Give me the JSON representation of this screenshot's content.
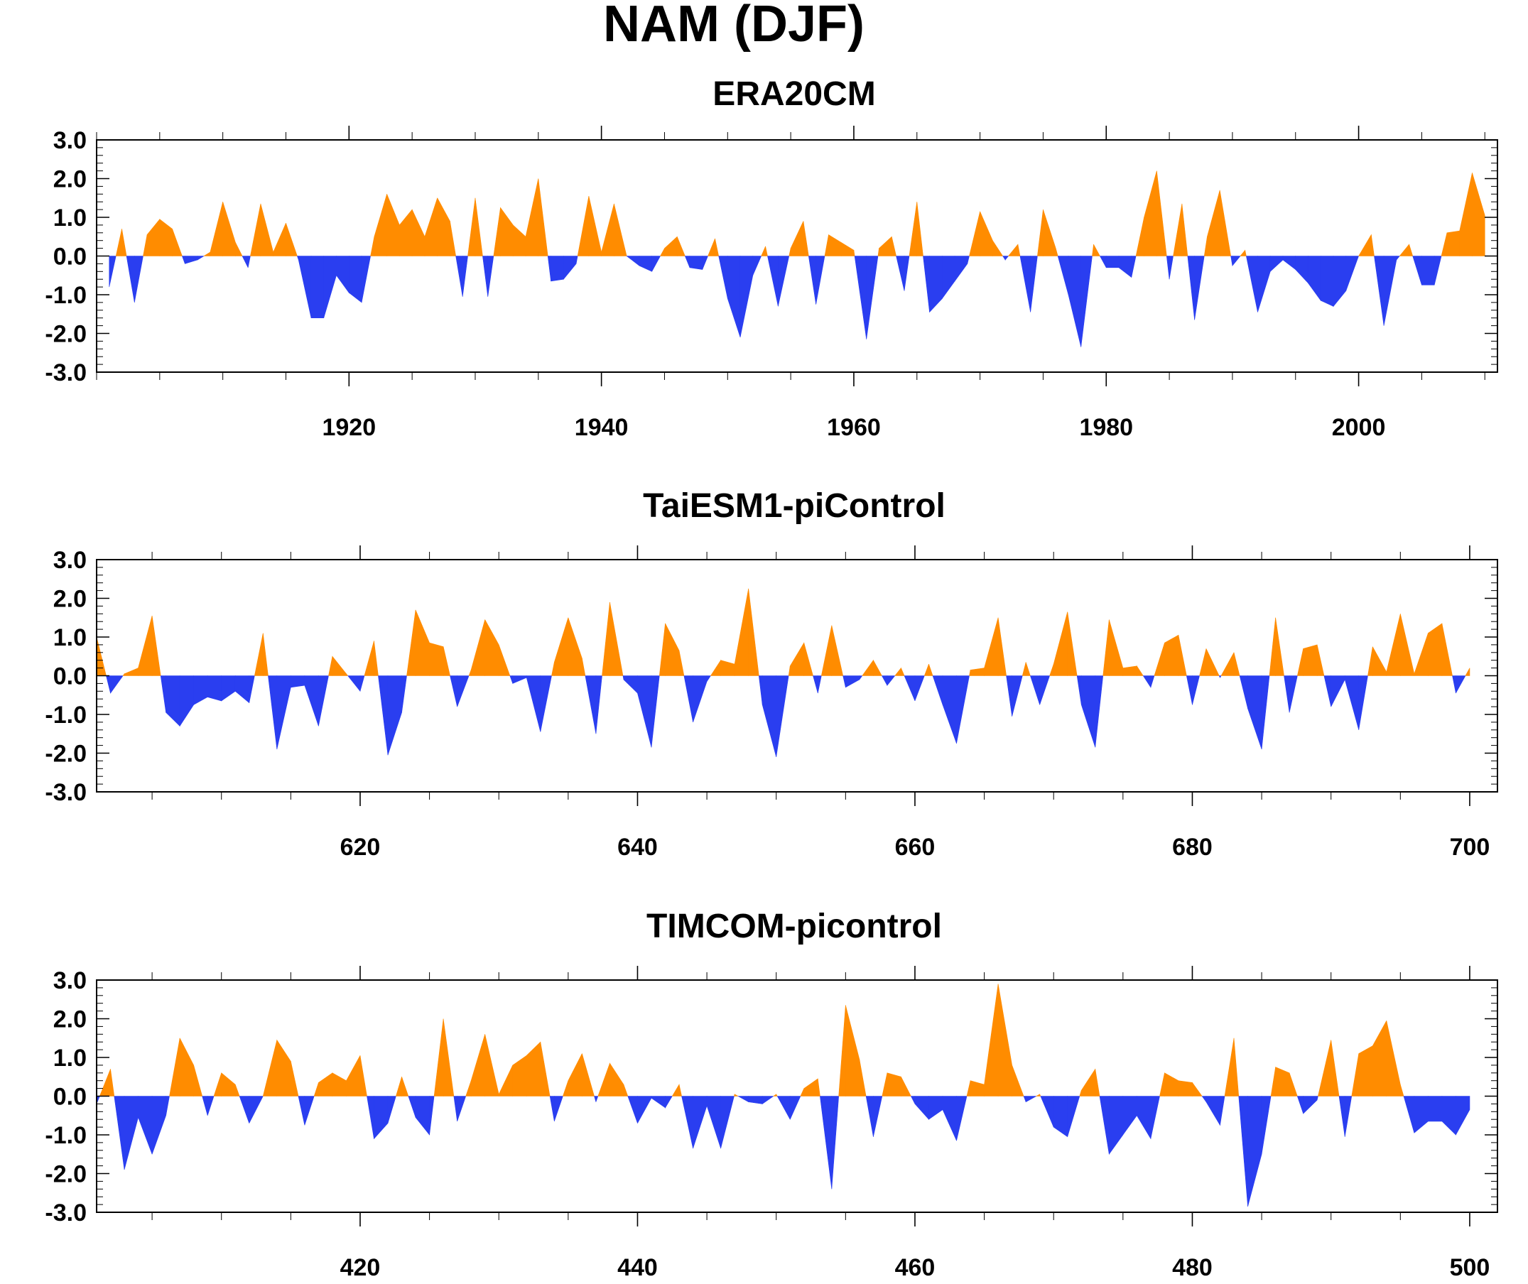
{
  "title": "NAM (DJF)",
  "colors": {
    "positive": "#ff8c00",
    "negative": "#2a3ef0",
    "axis": "#000000"
  },
  "chart_data": [
    {
      "type": "area",
      "title": "ERA20CM",
      "ylim": [
        -3,
        3
      ],
      "yticks": [
        "3.0",
        "2.0",
        "1.0",
        "0.0",
        "-1.0",
        "-2.0",
        "-3.0"
      ],
      "xlim": [
        1900,
        2011
      ],
      "xticks": [
        1920,
        1940,
        1960,
        1980,
        2000
      ],
      "x_start": 1901,
      "values": [
        -0.8,
        0.7,
        -1.2,
        0.55,
        0.95,
        0.7,
        -0.2,
        -0.1,
        0.1,
        1.4,
        0.35,
        -0.3,
        1.35,
        0.1,
        0.85,
        -0.1,
        -1.6,
        -1.6,
        -0.5,
        -0.95,
        -1.2,
        0.5,
        1.6,
        0.8,
        1.2,
        0.5,
        1.5,
        0.9,
        -1.05,
        1.5,
        -1.05,
        1.25,
        0.8,
        0.5,
        2.0,
        -0.65,
        -0.6,
        -0.2,
        1.55,
        0.1,
        1.35,
        0.0,
        -0.25,
        -0.4,
        0.2,
        0.5,
        -0.3,
        -0.35,
        0.45,
        -1.1,
        -2.1,
        -0.5,
        0.25,
        -1.3,
        0.2,
        0.9,
        -1.25,
        0.55,
        0.35,
        0.15,
        -2.15,
        0.2,
        0.5,
        -0.9,
        1.4,
        -1.45,
        -1.1,
        -0.65,
        -0.2,
        1.15,
        0.4,
        -0.1,
        0.3,
        -1.45,
        1.2,
        0.2,
        -1.0,
        -2.35,
        0.3,
        -0.3,
        -0.3,
        -0.55,
        1.0,
        2.2,
        -0.6,
        1.35,
        -1.65,
        0.5,
        1.7,
        -0.25,
        0.15,
        -1.45,
        -0.4,
        -0.1,
        -0.35,
        -0.7,
        -1.15,
        -1.3,
        -0.9,
        0.0,
        0.55,
        -1.8,
        -0.1,
        0.3,
        -0.75,
        -0.75,
        0.6,
        0.65,
        2.15,
        1.05
      ]
    },
    {
      "type": "area",
      "title": "TaiESM1-piControl",
      "ylim": [
        -3,
        3
      ],
      "yticks": [
        "3.0",
        "2.0",
        "1.0",
        "0.0",
        "-1.0",
        "-2.0",
        "-3.0"
      ],
      "xlim": [
        601,
        702
      ],
      "xticks": [
        620,
        640,
        660,
        680,
        700
      ],
      "x_start": 601,
      "values": [
        1.0,
        -0.45,
        0.05,
        0.2,
        1.55,
        -0.95,
        -1.3,
        -0.75,
        -0.55,
        -0.65,
        -0.4,
        -0.7,
        1.1,
        -1.9,
        -0.3,
        -0.25,
        -1.3,
        0.5,
        0.05,
        -0.4,
        0.9,
        -2.05,
        -0.95,
        1.7,
        0.85,
        0.75,
        -0.8,
        0.15,
        1.45,
        0.8,
        -0.2,
        -0.05,
        -1.45,
        0.35,
        1.5,
        0.45,
        -1.5,
        1.9,
        -0.1,
        -0.45,
        -1.85,
        1.35,
        0.65,
        -1.2,
        -0.15,
        0.4,
        0.3,
        2.25,
        -0.75,
        -2.1,
        0.25,
        0.85,
        -0.45,
        1.3,
        -0.3,
        -0.1,
        0.4,
        -0.25,
        0.2,
        -0.65,
        0.3,
        -0.75,
        -1.75,
        0.15,
        0.2,
        1.5,
        -1.05,
        0.35,
        -0.75,
        0.3,
        1.65,
        -0.75,
        -1.85,
        1.45,
        0.2,
        0.25,
        -0.3,
        0.85,
        1.05,
        -0.75,
        0.7,
        -0.05,
        0.6,
        -0.85,
        -1.9,
        1.5,
        -0.95,
        0.7,
        0.8,
        -0.8,
        -0.1,
        -1.4,
        0.75,
        0.1,
        1.6,
        0.05,
        1.1,
        1.35,
        -0.45,
        0.2
      ]
    },
    {
      "type": "area",
      "title": "TIMCOM-picontrol",
      "ylim": [
        -3,
        3
      ],
      "yticks": [
        "3.0",
        "2.0",
        "1.0",
        "0.0",
        "-1.0",
        "-2.0",
        "-3.0"
      ],
      "xlim": [
        401,
        502
      ],
      "xticks": [
        420,
        440,
        460,
        480,
        500
      ],
      "x_start": 401,
      "values": [
        -0.2,
        0.7,
        -1.9,
        -0.55,
        -1.5,
        -0.5,
        1.5,
        0.8,
        -0.5,
        0.6,
        0.3,
        -0.7,
        0.0,
        1.45,
        0.9,
        -0.75,
        0.35,
        0.6,
        0.4,
        1.05,
        -1.1,
        -0.7,
        0.5,
        -0.55,
        -1.0,
        2.0,
        -0.65,
        0.4,
        1.6,
        0.05,
        0.8,
        1.05,
        1.4,
        -0.65,
        0.4,
        1.1,
        -0.15,
        0.85,
        0.3,
        -0.7,
        -0.05,
        -0.3,
        0.3,
        -1.35,
        -0.25,
        -1.35,
        0.05,
        -0.15,
        -0.2,
        0.05,
        -0.6,
        0.2,
        0.45,
        -2.4,
        2.35,
        0.95,
        -1.05,
        0.6,
        0.5,
        -0.2,
        -0.6,
        -0.35,
        -1.15,
        0.4,
        0.3,
        2.9,
        0.8,
        -0.15,
        0.05,
        -0.8,
        -1.05,
        0.15,
        0.7,
        -1.5,
        -1.0,
        -0.5,
        -1.1,
        0.6,
        0.4,
        0.35,
        -0.15,
        -0.75,
        1.5,
        -2.85,
        -1.5,
        0.75,
        0.6,
        -0.45,
        -0.1,
        1.45,
        -1.05,
        1.1,
        1.3,
        1.95,
        0.3,
        -0.95,
        -0.65,
        -0.65,
        -1.0,
        -0.35
      ]
    }
  ]
}
